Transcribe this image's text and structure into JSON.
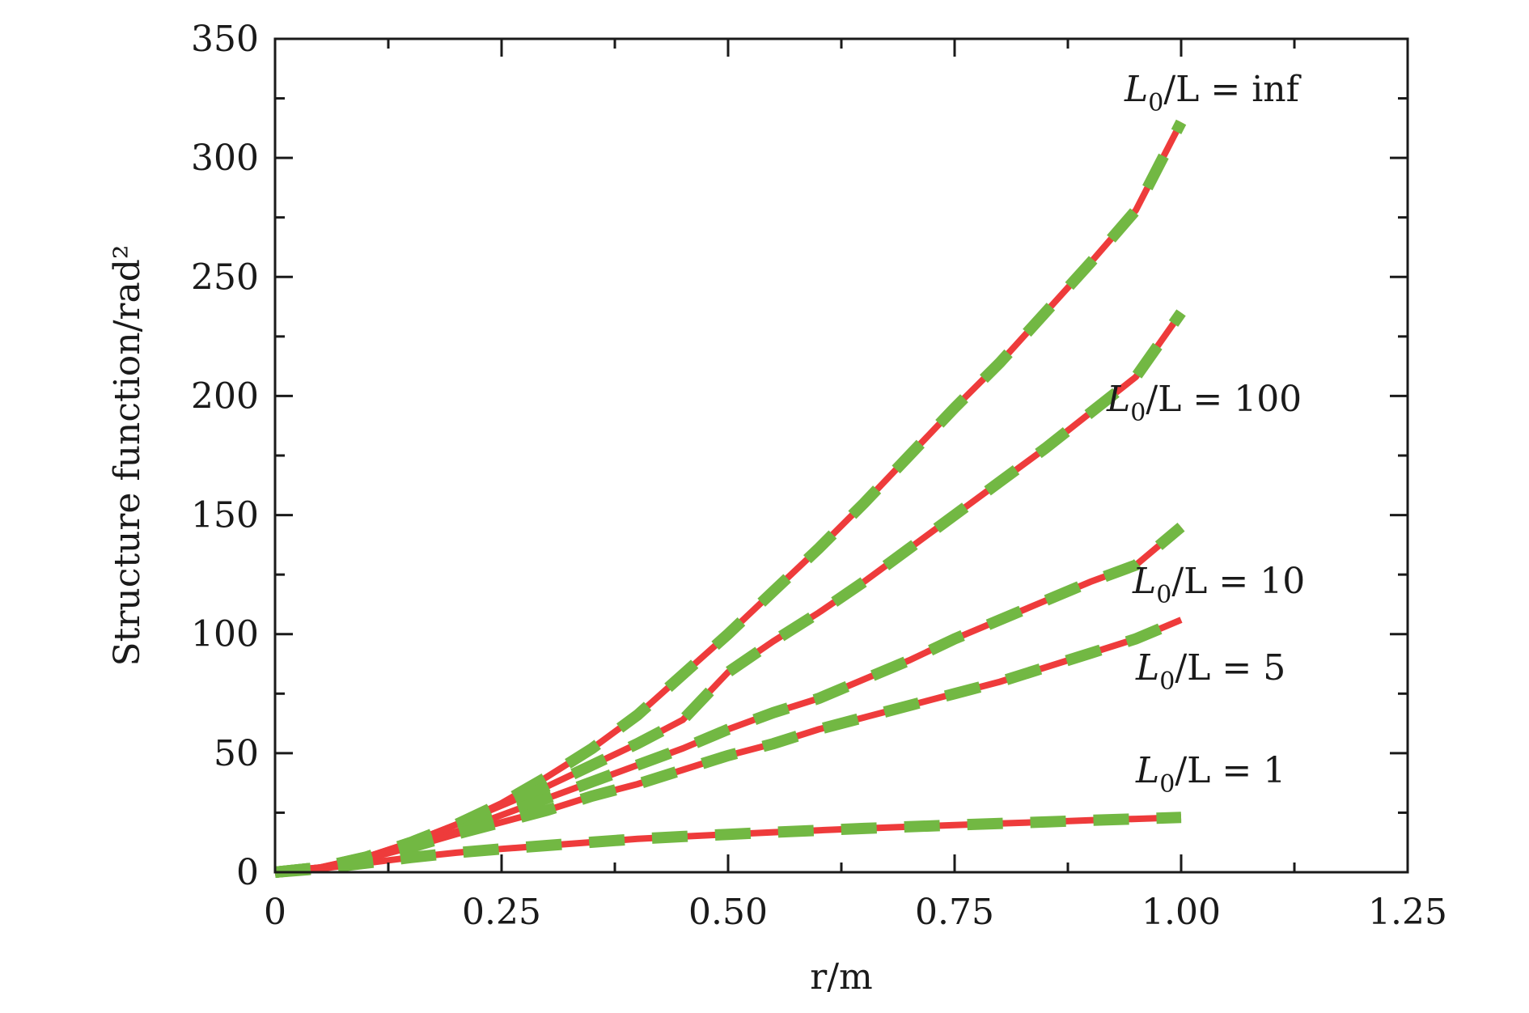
{
  "chart_data": {
    "type": "line",
    "xlabel": "r/m",
    "ylabel": "Structure function/rad²",
    "xlim": [
      0,
      1.25
    ],
    "ylim": [
      0,
      350
    ],
    "xticks": [
      0,
      0.25,
      0.5,
      0.75,
      1.0,
      1.25
    ],
    "xtick_labels": [
      "0",
      "0.25",
      "0.50",
      "0.75",
      "1.00",
      "1.25"
    ],
    "yticks": [
      0,
      50,
      100,
      150,
      200,
      250,
      300,
      350
    ],
    "ytick_labels": [
      "0",
      "50",
      "100",
      "150",
      "200",
      "250",
      "300",
      "350"
    ],
    "grid": false,
    "legend": "none",
    "x": [
      0,
      0.05,
      0.1,
      0.15,
      0.2,
      0.25,
      0.3,
      0.35,
      0.4,
      0.45,
      0.5,
      0.55,
      0.6,
      0.65,
      0.7,
      0.75,
      0.8,
      0.85,
      0.9,
      0.95,
      1.0
    ],
    "series": [
      {
        "label": "L0/L = inf",
        "label_parts": [
          "L",
          "0",
          "/L = inf"
        ],
        "values": [
          0,
          2,
          6.3,
          12.5,
          20,
          29,
          40,
          52,
          66,
          83,
          100,
          118,
          136,
          155,
          175,
          195,
          214,
          235,
          256,
          278,
          315
        ]
      },
      {
        "label": "L0/L = 100",
        "label_parts": [
          "L",
          "0",
          "/L = 100"
        ],
        "values": [
          0,
          2,
          6.3,
          12.5,
          20,
          28,
          36,
          45,
          54,
          64,
          84,
          97,
          109,
          122,
          136,
          150,
          164,
          178,
          193,
          208,
          235
        ]
      },
      {
        "label": "L0/L = 10",
        "label_parts": [
          "L",
          "0",
          "/L = 10"
        ],
        "values": [
          0,
          2,
          6,
          11,
          17,
          24,
          31,
          38,
          45,
          52,
          60,
          67,
          73,
          81,
          89,
          98,
          106,
          114,
          122,
          129,
          145
        ]
      },
      {
        "label": "L0/L = 5",
        "label_parts": [
          "L",
          "0",
          "/L = 5"
        ],
        "values": [
          0,
          1.8,
          5.5,
          10.5,
          16,
          21,
          26,
          32,
          37,
          43,
          49,
          54,
          60,
          65,
          70,
          75,
          80,
          86,
          92,
          98,
          106
        ]
      },
      {
        "label": "L0/L = 1",
        "label_parts": [
          "L",
          "0",
          "/L = 1"
        ],
        "values": [
          0,
          1.5,
          3.8,
          6.2,
          8.2,
          9.8,
          11.2,
          12.6,
          14,
          15,
          15.9,
          16.8,
          17.6,
          18.4,
          19.1,
          19.8,
          20.5,
          21.1,
          21.8,
          22.4,
          23
        ]
      }
    ],
    "colors": {
      "solid": "#ee3b3b",
      "dashed": "#72b843"
    }
  }
}
